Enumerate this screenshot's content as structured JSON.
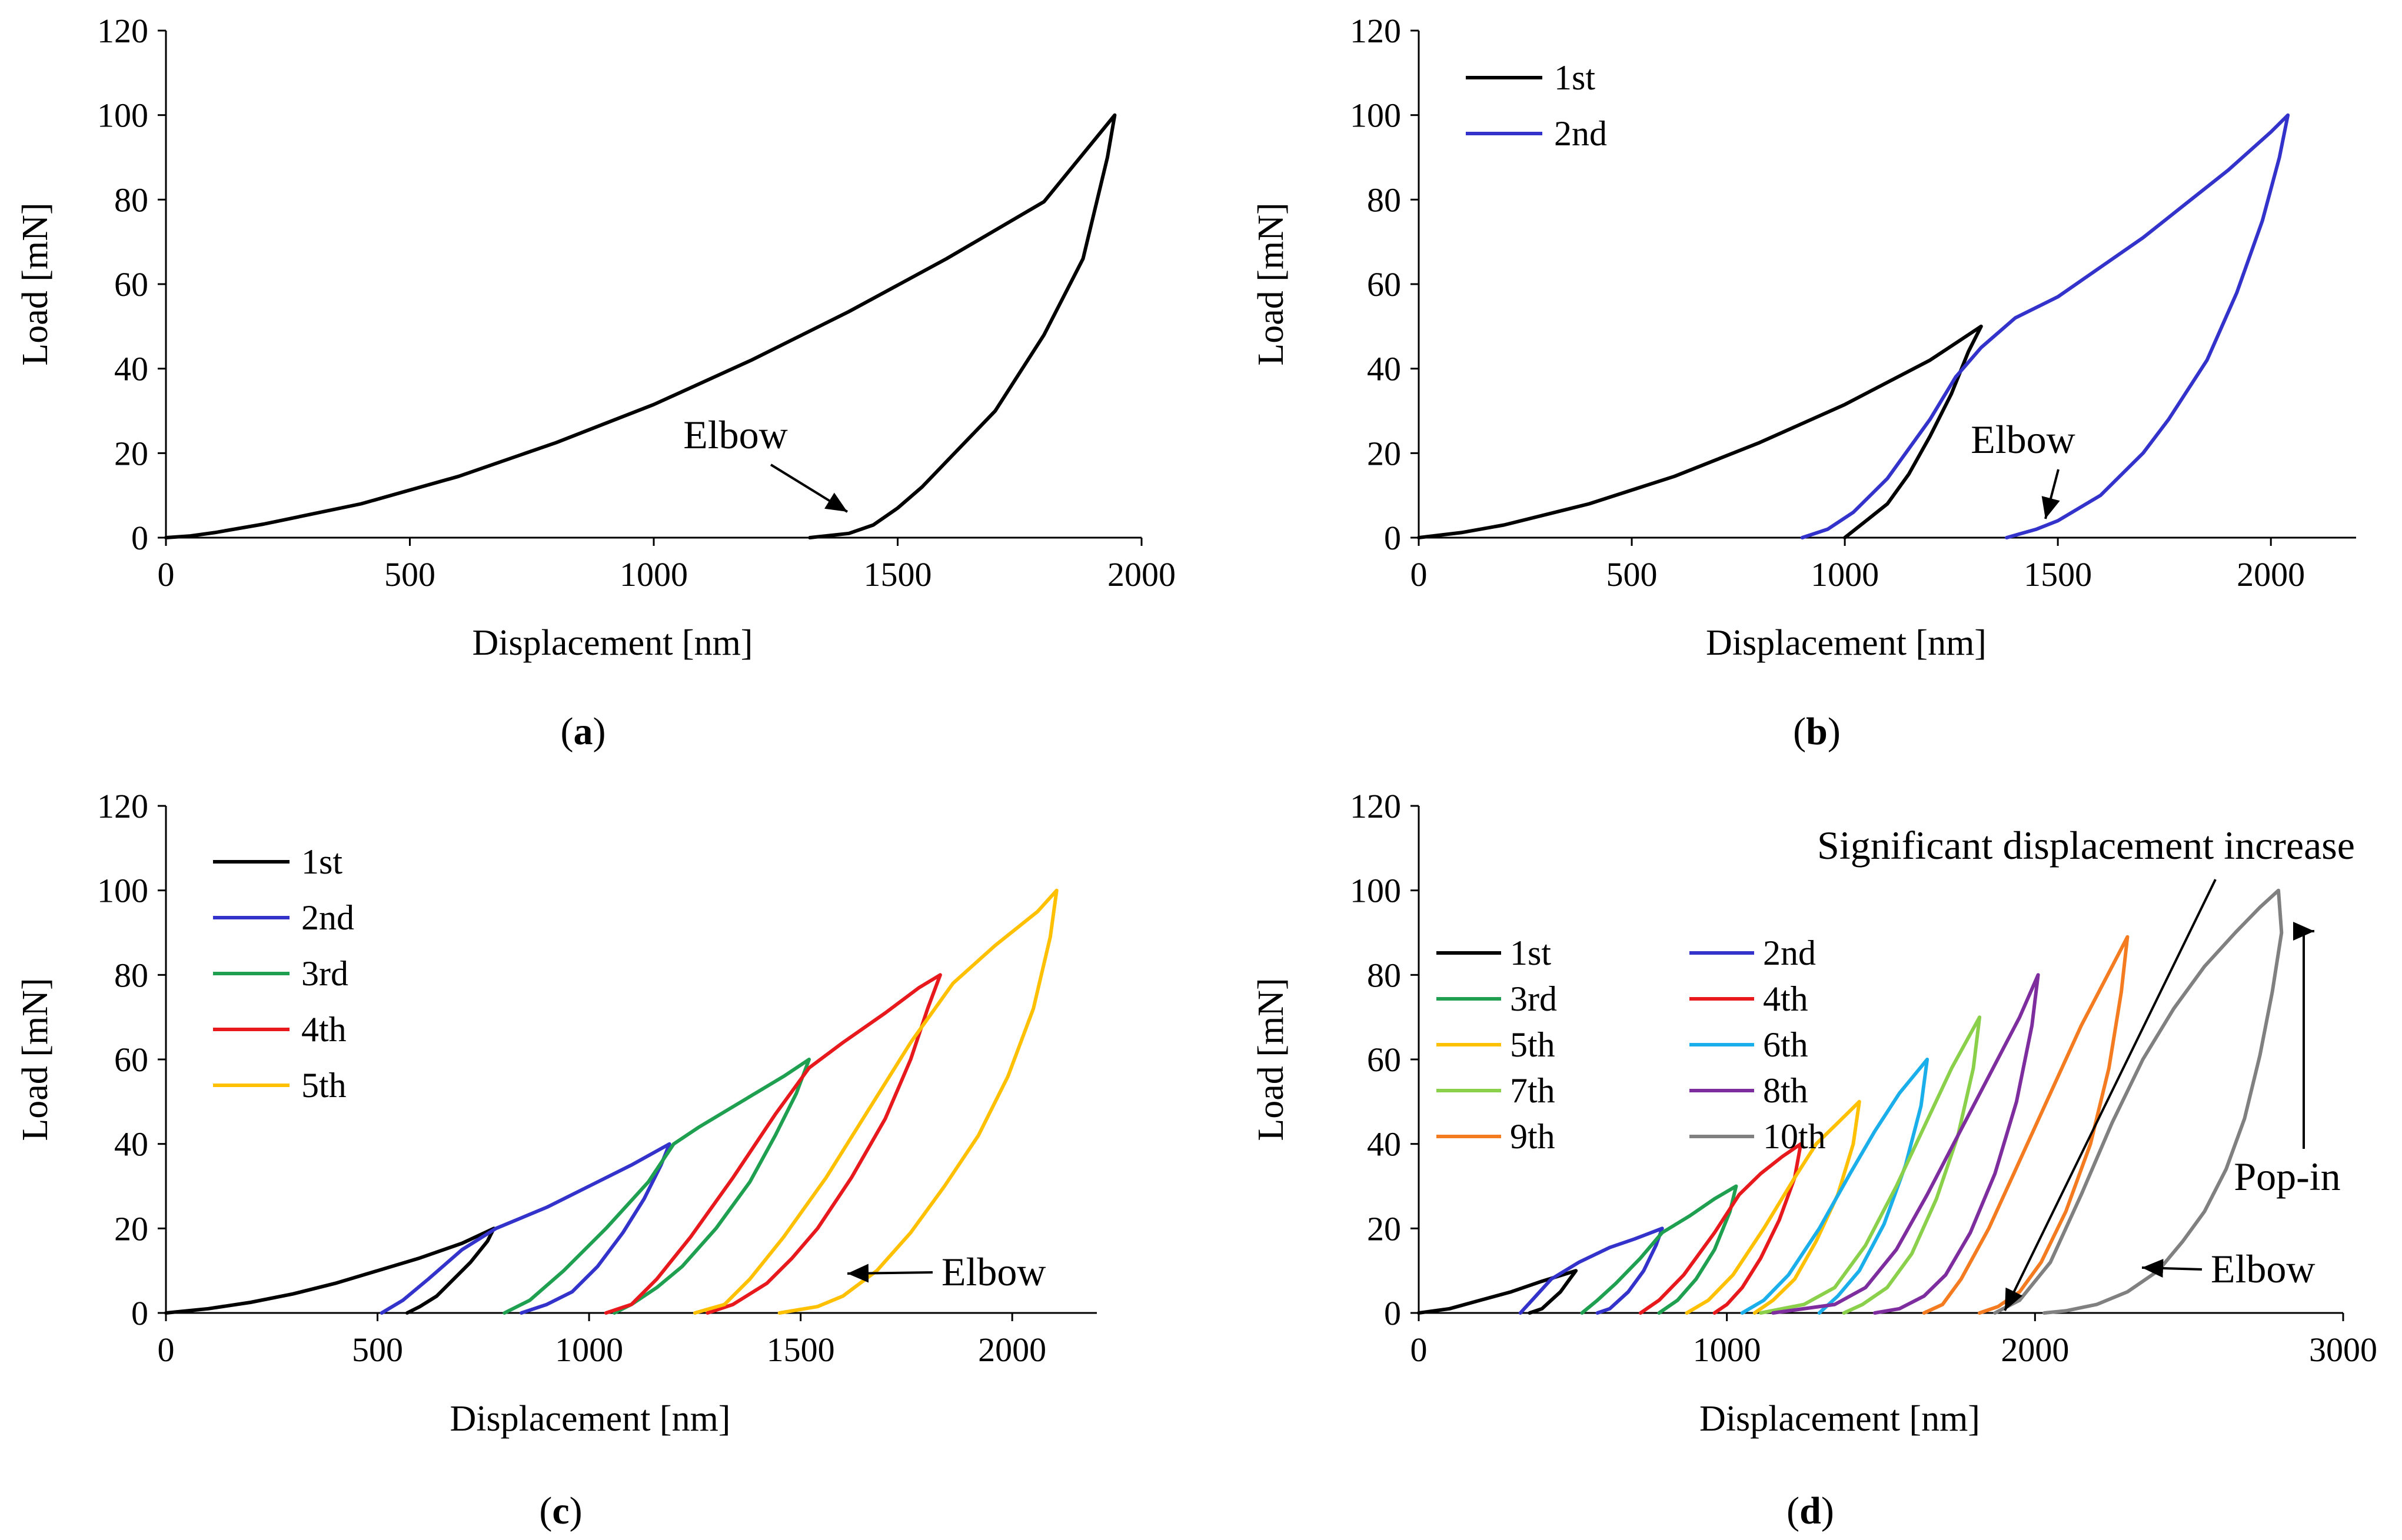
{
  "chart_data": [
    {
      "type": "line",
      "panel": "a",
      "caption": "a",
      "xlabel": "Displacement [nm]",
      "ylabel": "Load [mN]",
      "xlim": [
        0,
        2000
      ],
      "ylim": [
        0,
        120
      ],
      "xticks": [
        0,
        500,
        1000,
        1500,
        2000
      ],
      "yticks": [
        0,
        20,
        40,
        60,
        80,
        100,
        120
      ],
      "xtick_labels": [
        "0",
        "500",
        "1000",
        "1500",
        "2000"
      ],
      "ytick_labels": [
        "0",
        "20",
        "40",
        "60",
        "80",
        "100",
        "120"
      ],
      "legend": false,
      "series": [
        {
          "name": "",
          "color": "#000000",
          "x": [
            0,
            50,
            100,
            200,
            400,
            600,
            800,
            1000,
            1200,
            1400,
            1600,
            1800,
            1945,
            1930,
            1880,
            1800,
            1700,
            1600,
            1550,
            1500,
            1450,
            1400,
            1320
          ],
          "y": [
            0,
            0.4,
            1.2,
            3.2,
            8,
            14.5,
            22.5,
            31.5,
            42,
            53.5,
            66,
            79.5,
            100,
            90,
            66,
            48,
            30,
            18,
            12,
            7,
            3,
            1,
            0
          ]
        }
      ],
      "annotations": [
        {
          "text": "Elbow",
          "x": 1450,
          "y": 5
        }
      ]
    },
    {
      "type": "line",
      "panel": "b",
      "caption": "b",
      "xlabel": "Displacement [nm]",
      "ylabel": "Load [mN]",
      "xlim": [
        0,
        2200
      ],
      "ylim": [
        0,
        120
      ],
      "xticks": [
        0,
        500,
        1000,
        1500,
        2000
      ],
      "yticks": [
        0,
        20,
        40,
        60,
        80,
        100,
        120
      ],
      "xtick_labels": [
        "0",
        "500",
        "1000",
        "1500",
        "2000"
      ],
      "ytick_labels": [
        "0",
        "20",
        "40",
        "60",
        "80",
        "100",
        "120"
      ],
      "legend": true,
      "legend_position": "top-left",
      "series": [
        {
          "name": "1st",
          "color": "#000000",
          "x": [
            0,
            100,
            200,
            400,
            600,
            800,
            1000,
            1200,
            1320,
            1290,
            1250,
            1200,
            1150,
            1100,
            1050,
            1000
          ],
          "y": [
            0,
            1.2,
            3,
            8,
            14.5,
            22.5,
            31.5,
            42,
            50,
            44,
            34,
            24,
            15,
            8,
            4,
            0
          ]
        },
        {
          "name": "2nd",
          "color": "#3333CC",
          "x": [
            900,
            960,
            1020,
            1100,
            1200,
            1260,
            1320,
            1400,
            1500,
            1600,
            1700,
            1800,
            1900,
            2000,
            2040,
            2020,
            1980,
            1920,
            1850,
            1760,
            1700,
            1600,
            1500,
            1450,
            1380
          ],
          "y": [
            0,
            2,
            6,
            14,
            28,
            38,
            45,
            52,
            57,
            64,
            71,
            79,
            87,
            96,
            100,
            90,
            75,
            58,
            42,
            28,
            20,
            10,
            4,
            2,
            0
          ]
        }
      ],
      "annotations": [
        {
          "text": "Elbow",
          "x": 1480,
          "y": 2
        }
      ]
    },
    {
      "type": "line",
      "panel": "c",
      "caption": "c",
      "xlabel": "Displacement [nm]",
      "ylabel": "Load [mN]",
      "xlim": [
        0,
        2200
      ],
      "ylim": [
        0,
        120
      ],
      "xticks": [
        0,
        500,
        1000,
        1500,
        2000
      ],
      "yticks": [
        0,
        20,
        40,
        60,
        80,
        100,
        120
      ],
      "xtick_labels": [
        "0",
        "500",
        "1000",
        "1500",
        "2000"
      ],
      "ytick_labels": [
        "0",
        "20",
        "40",
        "60",
        "80",
        "100",
        "120"
      ],
      "legend": true,
      "legend_position": "top-left",
      "series": [
        {
          "name": "1st",
          "color": "#000000",
          "x": [
            0,
            100,
            200,
            300,
            400,
            500,
            600,
            700,
            775,
            760,
            720,
            680,
            640,
            600,
            570
          ],
          "y": [
            0,
            1,
            2.5,
            4.5,
            7,
            10,
            13,
            16.5,
            20,
            17,
            12,
            8,
            4,
            1.5,
            0
          ]
        },
        {
          "name": "2nd",
          "color": "#3333CC",
          "x": [
            510,
            560,
            620,
            700,
            780,
            900,
            1000,
            1100,
            1190,
            1170,
            1130,
            1080,
            1020,
            960,
            900,
            840
          ],
          "y": [
            0,
            3,
            8,
            15,
            20,
            25,
            30,
            35,
            40,
            35,
            27,
            19,
            11,
            5,
            2,
            0
          ]
        },
        {
          "name": "3rd",
          "color": "#1FA050",
          "x": [
            800,
            860,
            940,
            1040,
            1140,
            1200,
            1260,
            1360,
            1460,
            1520,
            1490,
            1440,
            1380,
            1300,
            1220,
            1160,
            1100,
            1060
          ],
          "y": [
            0,
            3,
            10,
            20,
            31,
            40,
            44,
            50,
            56,
            60,
            52,
            42,
            31,
            20,
            11,
            6,
            2,
            0
          ]
        },
        {
          "name": "4th",
          "color": "#E8191D",
          "x": [
            1040,
            1100,
            1160,
            1240,
            1340,
            1440,
            1520,
            1600,
            1700,
            1780,
            1830,
            1800,
            1760,
            1700,
            1620,
            1540,
            1480,
            1420,
            1340,
            1280
          ],
          "y": [
            0,
            2,
            8,
            18,
            32,
            47,
            58,
            64,
            71,
            77,
            80,
            72,
            60,
            46,
            32,
            20,
            13,
            7,
            2,
            0
          ]
        },
        {
          "name": "5th",
          "color": "#FFC000",
          "x": [
            1250,
            1320,
            1380,
            1460,
            1560,
            1660,
            1760,
            1860,
            1960,
            2060,
            2105,
            2090,
            2050,
            1990,
            1920,
            1840,
            1760,
            1680,
            1600,
            1540,
            1450
          ],
          "y": [
            0,
            2,
            8,
            18,
            32,
            48,
            64,
            78,
            87,
            95,
            100,
            89,
            72,
            56,
            42,
            30,
            19,
            10,
            4,
            1.5,
            0
          ]
        }
      ],
      "annotations": [
        {
          "text": "Elbow",
          "x": 1620,
          "y": 9
        }
      ]
    },
    {
      "type": "line",
      "panel": "d",
      "caption": "d",
      "xlabel": "Displacement [nm]",
      "ylabel": "Load [mN]",
      "xlim": [
        0,
        3000
      ],
      "ylim": [
        0,
        120
      ],
      "xticks": [
        0,
        1000,
        2000,
        3000
      ],
      "yticks": [
        0,
        20,
        40,
        60,
        80,
        100,
        120
      ],
      "xtick_labels": [
        "0",
        "1000",
        "2000",
        "3000"
      ],
      "ytick_labels": [
        "0",
        "20",
        "40",
        "60",
        "80",
        "100",
        "120"
      ],
      "legend": true,
      "legend_position": "left",
      "legend_columns": 2,
      "series": [
        {
          "name": "1st",
          "color": "#000000",
          "x": [
            0,
            100,
            200,
            300,
            400,
            510,
            490,
            460,
            430,
            400,
            360
          ],
          "y": [
            0,
            1,
            3,
            5,
            7.5,
            10,
            8,
            5,
            3,
            1,
            0
          ]
        },
        {
          "name": "2nd",
          "color": "#3333CC",
          "x": [
            330,
            380,
            430,
            520,
            620,
            700,
            790,
            770,
            730,
            680,
            620,
            580
          ],
          "y": [
            0,
            4,
            8,
            12,
            15.5,
            17.5,
            20,
            16,
            10,
            5,
            1,
            0
          ]
        },
        {
          "name": "3rd",
          "color": "#1FA050",
          "x": [
            530,
            580,
            640,
            720,
            790,
            880,
            960,
            1030,
            1010,
            960,
            900,
            840,
            780
          ],
          "y": [
            0,
            3,
            7,
            13,
            19,
            23,
            27,
            30,
            24,
            15,
            8,
            3,
            0
          ]
        },
        {
          "name": "4th",
          "color": "#E8191D",
          "x": [
            720,
            780,
            860,
            960,
            1040,
            1110,
            1180,
            1240,
            1220,
            1170,
            1110,
            1050,
            1000,
            960
          ],
          "y": [
            0,
            3,
            9,
            19,
            28,
            33,
            37,
            40,
            32,
            22,
            13,
            6,
            2,
            0
          ]
        },
        {
          "name": "5th",
          "color": "#FFC000",
          "x": [
            870,
            940,
            1020,
            1120,
            1220,
            1290,
            1360,
            1430,
            1410,
            1360,
            1290,
            1220,
            1150,
            1090
          ],
          "y": [
            0,
            3,
            9,
            20,
            32,
            40,
            45,
            50,
            40,
            28,
            17,
            8,
            3,
            0
          ]
        },
        {
          "name": "6th",
          "color": "#1AAFEA",
          "x": [
            1050,
            1120,
            1200,
            1300,
            1400,
            1480,
            1560,
            1650,
            1630,
            1580,
            1510,
            1430,
            1360,
            1300
          ],
          "y": [
            0,
            3,
            9,
            20,
            33,
            43,
            52,
            60,
            49,
            35,
            21,
            10,
            4,
            0
          ]
        },
        {
          "name": "7th",
          "color": "#8BD04A",
          "x": [
            1110,
            1250,
            1350,
            1450,
            1550,
            1640,
            1730,
            1820,
            1800,
            1750,
            1680,
            1600,
            1520,
            1440,
            1380
          ],
          "y": [
            0,
            2,
            6,
            16,
            30,
            44,
            58,
            70,
            58,
            42,
            27,
            14,
            6,
            2,
            0
          ]
        },
        {
          "name": "8th",
          "color": "#7E2D9E",
          "x": [
            1150,
            1350,
            1450,
            1550,
            1650,
            1750,
            1850,
            1950,
            2010,
            1990,
            1940,
            1870,
            1790,
            1710,
            1640,
            1560,
            1480
          ],
          "y": [
            0,
            2,
            6,
            15,
            28,
            42,
            56,
            70,
            80,
            68,
            50,
            33,
            19,
            9,
            4,
            1,
            0
          ]
        },
        {
          "name": "9th",
          "color": "#F47B20",
          "x": [
            1640,
            1700,
            1760,
            1850,
            1950,
            2050,
            2150,
            2250,
            2300,
            2280,
            2240,
            2180,
            2100,
            2020,
            1950,
            1880,
            1820
          ],
          "y": [
            0,
            2,
            8,
            20,
            36,
            52,
            68,
            82,
            89,
            76,
            58,
            40,
            24,
            12,
            5,
            1.5,
            0
          ]
        },
        {
          "name": "10th",
          "color": "#808080",
          "x": [
            1870,
            1950,
            2050,
            2150,
            2250,
            2350,
            2450,
            2550,
            2650,
            2730,
            2790,
            2800,
            2770,
            2730,
            2680,
            2620,
            2550,
            2480,
            2400,
            2300,
            2200,
            2100,
            2030
          ],
          "y": [
            0,
            3,
            12,
            28,
            45,
            60,
            72,
            82,
            90,
            96,
            100,
            90,
            76,
            61,
            46,
            34,
            24,
            17,
            10,
            5,
            2,
            0.5,
            0
          ]
        }
      ],
      "annotations": [
        {
          "text": "Significant displacement increase",
          "x": 1850,
          "y": 0
        },
        {
          "text": "Pop-in",
          "x": 2800,
          "y": 90
        },
        {
          "text": "Elbow",
          "x": 2340,
          "y": 12
        }
      ]
    }
  ]
}
